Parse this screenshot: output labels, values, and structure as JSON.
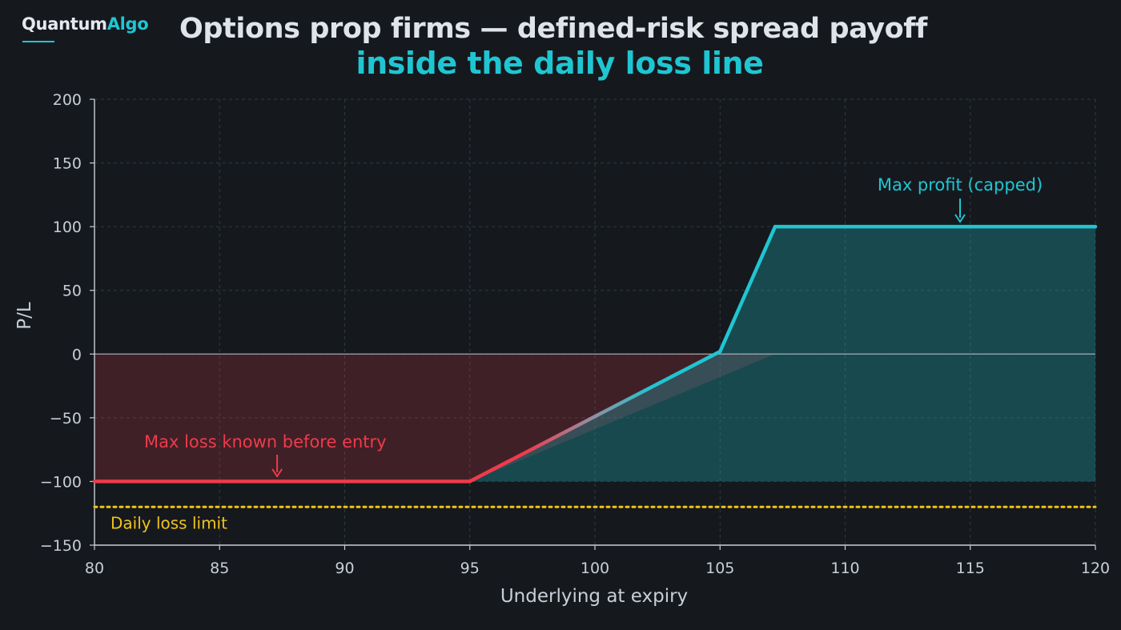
{
  "brand": {
    "part1": "Quantum",
    "part2": "Algo"
  },
  "title": "Options prop firms — defined-risk spread payoff",
  "subtitle": "inside the daily loss line",
  "colors": {
    "background": "#15191e",
    "accent": "#1fc6d2",
    "loss": "#ee3b4a",
    "limit": "#f2c21b",
    "grid": "#2e3a3c",
    "axis": "#c9ced6",
    "text": "#c9ced6"
  },
  "chart_data": {
    "type": "line",
    "xlabel": "Underlying at expiry",
    "ylabel": "P/L",
    "xlim": [
      80,
      120
    ],
    "ylim": [
      -150,
      200
    ],
    "xticks": [
      80,
      85,
      90,
      95,
      100,
      105,
      110,
      115,
      120
    ],
    "yticks": [
      -150,
      -100,
      -50,
      0,
      50,
      100,
      150,
      200
    ],
    "grid": true,
    "series": [
      {
        "x": [
          80,
          95,
          105,
          107.2,
          120
        ],
        "y": [
          -100,
          -100,
          2,
          100,
          100
        ]
      }
    ],
    "reference_lines": [
      {
        "y": -120,
        "label": "Daily loss limit",
        "style": "dotted"
      }
    ],
    "annotations": [
      {
        "text": "Max loss known before entry",
        "x": 87.3,
        "y": -100
      },
      {
        "text": "Max profit (capped)",
        "x": 114.6,
        "y": 100
      }
    ]
  }
}
